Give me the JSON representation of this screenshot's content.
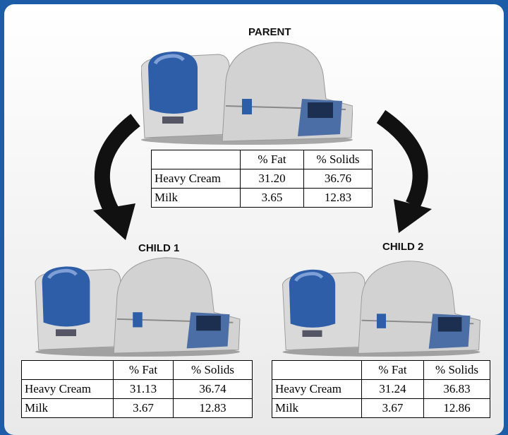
{
  "parent": {
    "label": "PARENT",
    "table": {
      "columns": [
        "% Fat",
        "% Solids"
      ],
      "rows": [
        [
          "Heavy Cream",
          "31.20",
          "36.76"
        ],
        [
          "Milk",
          "3.65",
          "12.83"
        ]
      ]
    }
  },
  "child1": {
    "label": "CHILD 1",
    "table": {
      "columns": [
        "% Fat",
        "% Solids"
      ],
      "rows": [
        [
          "Heavy Cream",
          "31.13",
          "36.74"
        ],
        [
          "Milk",
          "3.67",
          "12.83"
        ]
      ]
    }
  },
  "child2": {
    "label": "CHILD 2",
    "table": {
      "columns": [
        "% Fat",
        "% Solids"
      ],
      "rows": [
        [
          "Heavy Cream",
          "31.24",
          "36.83"
        ],
        [
          "Milk",
          "3.67",
          "12.86"
        ]
      ]
    }
  }
}
